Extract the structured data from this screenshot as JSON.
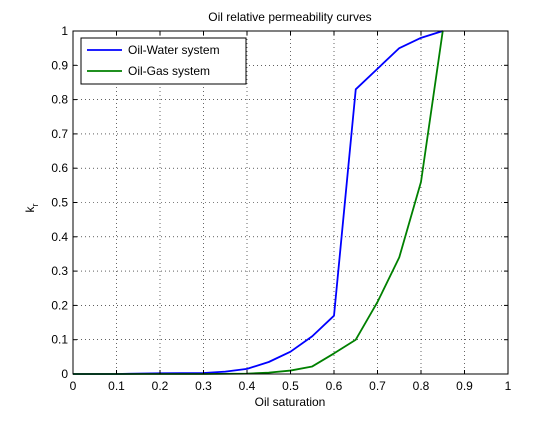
{
  "chart_data": {
    "type": "line",
    "title": "Oil relative permeability curves",
    "xlabel": "Oil saturation",
    "ylabel_main": "k",
    "ylabel_sub": "r",
    "xlim": [
      0,
      1
    ],
    "ylim": [
      0,
      1
    ],
    "xticks": [
      "0",
      "0.1",
      "0.2",
      "0.3",
      "0.4",
      "0.5",
      "0.6",
      "0.7",
      "0.8",
      "0.9",
      "1"
    ],
    "yticks": [
      "0",
      "0.1",
      "0.2",
      "0.3",
      "0.4",
      "0.5",
      "0.6",
      "0.7",
      "0.8",
      "0.9",
      "1"
    ],
    "grid": true,
    "legend_position": "top-left",
    "series": [
      {
        "name": "Oil-Water system",
        "color": "#0000ff",
        "x": [
          0,
          0.1,
          0.2,
          0.3,
          0.35,
          0.4,
          0.45,
          0.5,
          0.55,
          0.6,
          0.65,
          0.7,
          0.75,
          0.8,
          0.85
        ],
        "y": [
          0,
          0,
          0.002,
          0.003,
          0.007,
          0.015,
          0.035,
          0.065,
          0.11,
          0.17,
          0.83,
          0.89,
          0.95,
          0.98,
          1.0
        ]
      },
      {
        "name": "Oil-Gas system",
        "color": "#008000",
        "x": [
          0,
          0.1,
          0.2,
          0.3,
          0.4,
          0.45,
          0.5,
          0.55,
          0.6,
          0.65,
          0.7,
          0.75,
          0.8,
          0.85
        ],
        "y": [
          0,
          0,
          0,
          0,
          0.001,
          0.004,
          0.01,
          0.022,
          0.06,
          0.1,
          0.21,
          0.34,
          0.56,
          1.0
        ]
      }
    ]
  }
}
